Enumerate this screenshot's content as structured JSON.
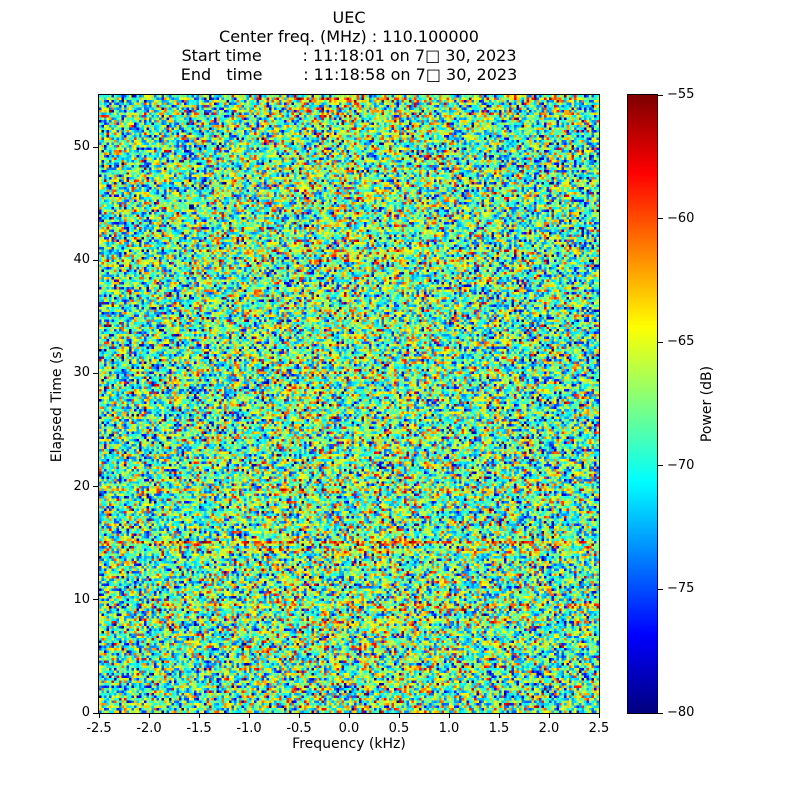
{
  "figure": {
    "title": "UEC",
    "lines": [
      "Center freq. (MHz) : 110.100000",
      "Start time        : 11:18:01 on 7□ 30, 2023",
      "End   time        : 11:18:58 on 7□ 30, 2023"
    ]
  },
  "chart_data": {
    "type": "heatmap",
    "subtype": "spectrogram-waterfall",
    "title": "UEC",
    "center_freq_mhz": "110.100000",
    "start_time": "11:18:01 on 7□ 30, 2023",
    "end_time": "11:18:58 on 7□ 30, 2023",
    "xlabel": "Frequency (kHz)",
    "ylabel": "Elapsed Time (s)",
    "xlim": [
      -2.5,
      2.5
    ],
    "ylim": [
      0,
      54.6
    ],
    "grid": false,
    "x_ticks": {
      "values": [
        -2.5,
        -2.0,
        -1.5,
        -1.0,
        -0.5,
        0.0,
        0.5,
        1.0,
        1.5,
        2.0,
        2.5
      ],
      "labels": [
        "-2.5",
        "-2.0",
        "-1.5",
        "-1.0",
        "-0.5",
        "0.0",
        "0.5",
        "1.0",
        "1.5",
        "2.0",
        "2.5"
      ]
    },
    "y_ticks": {
      "values": [
        0,
        10,
        20,
        30,
        40,
        50
      ],
      "labels": [
        "0",
        "10",
        "20",
        "30",
        "40",
        "50"
      ]
    },
    "colorbar": {
      "label": "Power (dB)",
      "colormap": "jet",
      "vmin": -80,
      "vmax": -55,
      "tick_values": [
        -55,
        -60,
        -65,
        -70,
        -75,
        -80
      ],
      "tick_labels": [
        "−55",
        "−60",
        "−65",
        "−70",
        "−75",
        "−80"
      ],
      "position": "right"
    },
    "colors": {
      "background": "#ffffff",
      "axes": "#000000",
      "text": "#000000",
      "cmap_low": "#000080",
      "cmap_mid": "#7cff79",
      "cmap_high": "#800000"
    },
    "noise": {
      "description": "broadband random noise floor with sporadic stronger horizontal bursts",
      "seed": 1337,
      "cols": 200,
      "rows": 248,
      "mean_db": -69.0,
      "sd_db": 4.8,
      "center_boost_db": 1.3,
      "hot_rows": [
        {
          "elapsed_s": 54.3,
          "boost_db": 5.5,
          "x0": 0.3,
          "x1": 0.95
        },
        {
          "elapsed_s": 53.0,
          "boost_db": 2.5,
          "x0": 0.0,
          "x1": 1.0
        },
        {
          "elapsed_s": 41.0,
          "boost_db": 2.5,
          "x0": 0.2,
          "x1": 1.0
        },
        {
          "elapsed_s": 40.0,
          "boost_db": 2.0,
          "x0": 0.0,
          "x1": 0.8
        },
        {
          "elapsed_s": 19.7,
          "boost_db": 3.0,
          "x0": 0.0,
          "x1": 1.0
        },
        {
          "elapsed_s": 15.0,
          "boost_db": 5.5,
          "x0": 0.0,
          "x1": 1.0
        },
        {
          "elapsed_s": 14.4,
          "boost_db": 2.5,
          "x0": 0.0,
          "x1": 1.0
        },
        {
          "elapsed_s": 9.6,
          "boost_db": 3.0,
          "x0": 0.1,
          "x1": 1.0
        },
        {
          "elapsed_s": 8.1,
          "boost_db": 2.0,
          "x0": 0.0,
          "x1": 0.9
        },
        {
          "elapsed_s": 6.0,
          "boost_db": 2.0,
          "x0": 0.4,
          "x1": 1.0
        }
      ]
    }
  }
}
